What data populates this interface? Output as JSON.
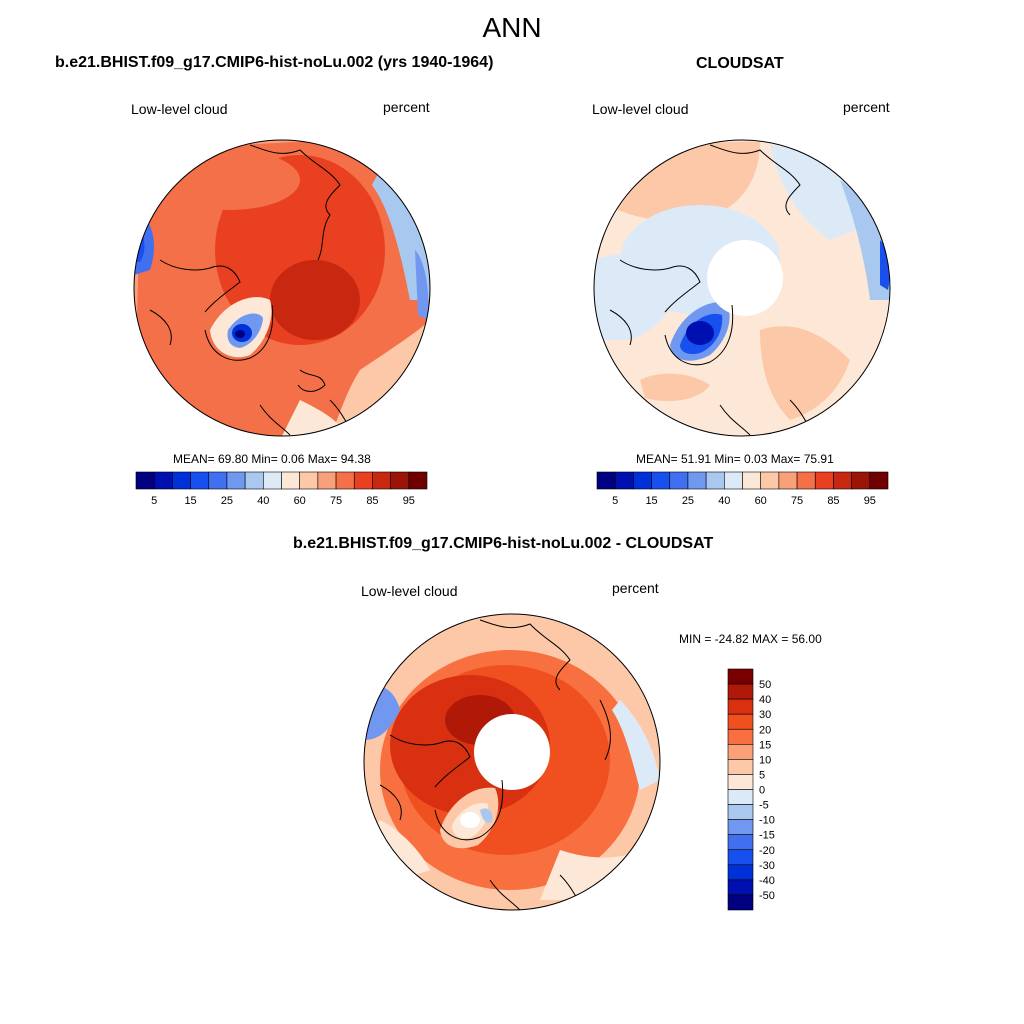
{
  "figure": {
    "title": "ANN"
  },
  "panels": [
    {
      "title": "b.e21.BHIST.f09_g17.CMIP6-hist-noLu.002 (yrs 1940-1964)",
      "left_label": "Low-level cloud",
      "right_label": "percent",
      "stats": "MEAN=  69.80  Min=   0.06  Max=  94.38"
    },
    {
      "title": "CLOUDSAT",
      "left_label": "Low-level cloud",
      "right_label": "percent",
      "stats": "MEAN=  51.91  Min=   0.03  Max=  75.91"
    },
    {
      "title": "b.e21.BHIST.f09_g17.CMIP6-hist-noLu.002 - CLOUDSAT",
      "left_label": "Low-level cloud",
      "right_label": "percent",
      "stats": "MIN = -24.82 MAX =  56.00"
    }
  ],
  "colorbars": {
    "absolute": {
      "tick_labels": [
        "5",
        "15",
        "25",
        "40",
        "60",
        "75",
        "85",
        "95"
      ],
      "colors": [
        "#000080",
        "#0010b0",
        "#0030d8",
        "#1850f0",
        "#4070f0",
        "#7098f0",
        "#a8c8f0",
        "#dceaf8",
        "#fde8d8",
        "#fcc8a8",
        "#f8a07a",
        "#f47048",
        "#e84020",
        "#c82810",
        "#9a1408",
        "#700000"
      ]
    },
    "difference": {
      "tick_labels": [
        "50",
        "40",
        "30",
        "20",
        "15",
        "10",
        "5",
        "0",
        "-5",
        "-10",
        "-15",
        "-20",
        "-30",
        "-40",
        "-50"
      ],
      "colors": [
        "#7a0000",
        "#b01808",
        "#d83010",
        "#f05020",
        "#f87040",
        "#fca078",
        "#fcc8a8",
        "#fde8d8",
        "#dceaf8",
        "#a8c8f0",
        "#7098f0",
        "#4070f0",
        "#1850f0",
        "#0030d8",
        "#0010b0",
        "#000080"
      ]
    }
  },
  "map_colors": {
    "land_outline": "#000000",
    "missing": "#ffffff"
  }
}
